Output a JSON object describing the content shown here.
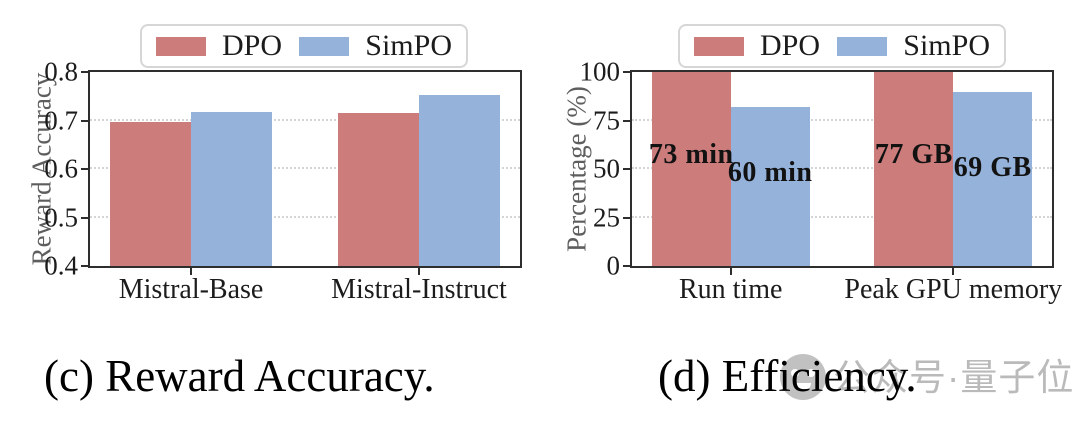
{
  "figure": {
    "watermark_text": "公众号·量子位"
  },
  "colors": {
    "dpo": "#cc7c7b",
    "simpo": "#95b2da",
    "axis": "#2e2e2e",
    "grid": "#d4d4d4",
    "axis_label": "#5e5e5e",
    "tick_label": "#1c1c1c",
    "watermark": "#8f8f8f"
  },
  "chart_data": [
    {
      "id": "c",
      "type": "bar",
      "caption": "(c) Reward Accuracy.",
      "title": "",
      "xlabel": "",
      "ylabel": "Reward Accuracy",
      "ylim": [
        0.4,
        0.8
      ],
      "yticks": [
        0.4,
        0.5,
        0.6,
        0.7,
        0.8
      ],
      "ytick_labels": [
        "0.4",
        "0.5",
        "0.6",
        "0.7",
        "0.8"
      ],
      "categories": [
        "Mistral-Base",
        "Mistral-Instruct"
      ],
      "grid": true,
      "legend_position": "top",
      "series": [
        {
          "name": "DPO",
          "color": "#cc7c7b",
          "values": [
            0.697,
            0.715
          ]
        },
        {
          "name": "SimPO",
          "color": "#95b2da",
          "values": [
            0.718,
            0.752
          ]
        }
      ]
    },
    {
      "id": "d",
      "type": "bar",
      "caption": "(d) Efficiency.",
      "title": "",
      "xlabel": "",
      "ylabel": "Percentage (%)",
      "ylim": [
        0,
        100
      ],
      "yticks": [
        0,
        25,
        50,
        75,
        100
      ],
      "ytick_labels": [
        "0",
        "25",
        "50",
        "75",
        "100"
      ],
      "categories": [
        "Run time",
        "Peak GPU memory"
      ],
      "grid": true,
      "legend_position": "top",
      "series": [
        {
          "name": "DPO",
          "color": "#cc7c7b",
          "values": [
            100,
            100
          ],
          "bar_labels": [
            "73 min",
            "77 GB"
          ],
          "label_top_pct": [
            43,
            43
          ]
        },
        {
          "name": "SimPO",
          "color": "#95b2da",
          "values": [
            82.2,
            89.6
          ],
          "bar_labels": [
            "60 min",
            "69 GB"
          ],
          "label_top_pct": [
            52,
            49.5
          ]
        }
      ]
    }
  ]
}
